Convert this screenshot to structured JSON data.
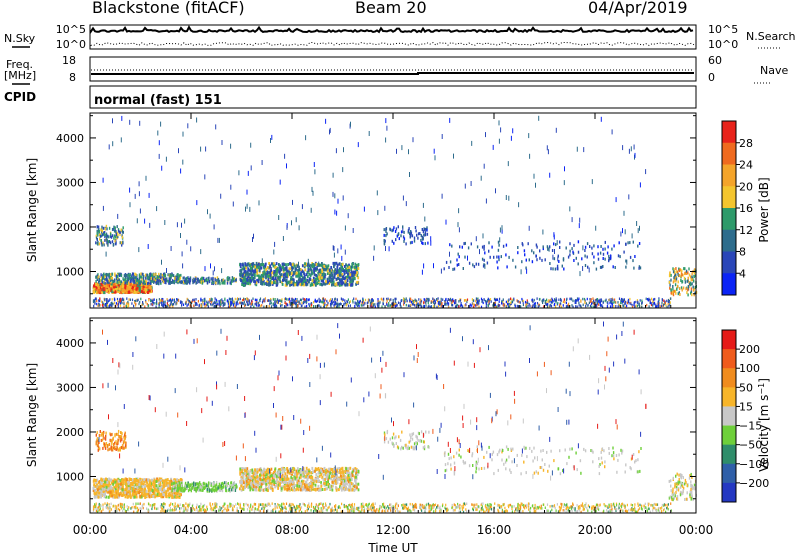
{
  "header": {
    "station": "Blackstone (fitACF)",
    "beam": "Beam 20",
    "date": "04/Apr/2019"
  },
  "noise_panel": {
    "left_label": "N.Sky",
    "right_label": "N.Search",
    "ticks": [
      "10^5",
      "10^0"
    ]
  },
  "freq_panel": {
    "left_label_1": "Freq.",
    "left_label_2": "[MHz]",
    "left_ticks": [
      "18",
      "8"
    ],
    "right_label": "Nave",
    "right_ticks": [
      "60",
      "0"
    ]
  },
  "cpid_panel": {
    "label": "CPID",
    "text": "normal (fast) 151"
  },
  "chart_data": [
    {
      "type": "heatmap",
      "name": "power",
      "ylabel": "Slant Range [km]",
      "ylim": [
        180,
        4560
      ],
      "yticks": [
        1000,
        2000,
        3000,
        4000
      ],
      "xlim": [
        0,
        24
      ],
      "colorbar": {
        "label": "Power [dB]",
        "range": [
          0,
          32
        ],
        "ticks": [
          "4",
          "8",
          "12",
          "16",
          "20",
          "24",
          "28"
        ],
        "bins": [
          {
            "from": 0,
            "to": 4,
            "color": "#0b24f5"
          },
          {
            "from": 4,
            "to": 8,
            "color": "#2a46b8"
          },
          {
            "from": 8,
            "to": 12,
            "color": "#2d6c8c"
          },
          {
            "from": 12,
            "to": 16,
            "color": "#2e9a6a"
          },
          {
            "from": 16,
            "to": 20,
            "color": "#f4c52e"
          },
          {
            "from": 20,
            "to": 24,
            "color": "#f4a42a"
          },
          {
            "from": 24,
            "to": 28,
            "color": "#ef6a1f"
          },
          {
            "from": 28,
            "to": 32,
            "color": "#e8231b"
          }
        ]
      }
    },
    {
      "type": "heatmap",
      "name": "velocity",
      "ylabel": "Slant Range [km]",
      "ylim": [
        180,
        4560
      ],
      "yticks": [
        1000,
        2000,
        3000,
        4000
      ],
      "xlim": [
        0,
        24
      ],
      "colorbar": {
        "label": "Velocity [m s^-1]",
        "ticks": [
          "200",
          "100",
          "50",
          "15",
          "-15",
          "-50",
          "-100",
          "-200"
        ],
        "bins": [
          {
            "range": "> 200",
            "color": "#2438c2"
          },
          {
            "range": "100 to 200",
            "color": "#2f5fa8"
          },
          {
            "range": "50 to 100",
            "color": "#2f8d6a"
          },
          {
            "range": "15 to 50",
            "color": "#6ecf3a"
          },
          {
            "range": "-15 to 15",
            "color": "#c8c8c8"
          },
          {
            "range": "-50 to -15",
            "color": "#f7b52a"
          },
          {
            "range": "-100 to -50",
            "color": "#f08c1e"
          },
          {
            "range": "-200 to -100",
            "color": "#ef5b1c"
          },
          {
            "range": "< -200",
            "color": "#e51b18"
          }
        ]
      }
    }
  ],
  "time_axis": {
    "label": "Time UT",
    "ticks": [
      "00:00",
      "04:00",
      "08:00",
      "12:00",
      "16:00",
      "20:00",
      "00:00"
    ],
    "tick_hours": [
      0,
      4,
      8,
      12,
      16,
      20,
      24
    ]
  },
  "colors": {
    "axis": "#000000",
    "background": "#ffffff"
  }
}
